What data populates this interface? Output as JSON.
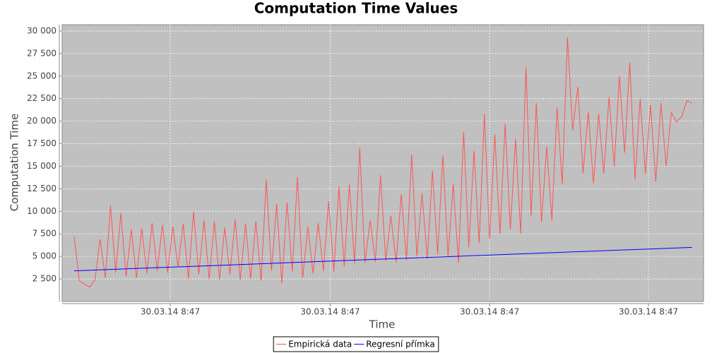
{
  "chart_data": {
    "type": "line",
    "title": "Computation Time Values",
    "x_label": "Time",
    "y_label": "Computation Time",
    "xlim": [
      -2.31,
      121.2
    ],
    "xticks": [
      {
        "value": 18.5,
        "label": "30.03.14 8:47"
      },
      {
        "value": 49.3,
        "label": "30.03.14 8:47"
      },
      {
        "value": 80.0,
        "label": "30.03.14 8:47"
      },
      {
        "value": 110.6,
        "label": "30.03.14 8:47"
      }
    ],
    "ylim": [
      0,
      30700
    ],
    "yticks": [
      {
        "value": 2500,
        "label": "2 500"
      },
      {
        "value": 5000,
        "label": "5 000"
      },
      {
        "value": 7500,
        "label": "7 500"
      },
      {
        "value": 10000,
        "label": "10 000"
      },
      {
        "value": 12500,
        "label": "12 500"
      },
      {
        "value": 15000,
        "label": "15 000"
      },
      {
        "value": 17500,
        "label": "17 500"
      },
      {
        "value": 20000,
        "label": "20 000"
      },
      {
        "value": 22500,
        "label": "22 500"
      },
      {
        "value": 25000,
        "label": "25 000"
      },
      {
        "value": 27500,
        "label": "27 500"
      },
      {
        "value": 30000,
        "label": "30 000"
      }
    ],
    "grid": true,
    "plot_background": "#c0c0c0",
    "legend_position": "bottom",
    "series": [
      {
        "name": "Empirická data",
        "color": "#ff5555",
        "x": [
          0,
          1,
          2,
          3,
          4,
          5,
          6,
          7,
          8,
          9,
          10,
          11,
          12,
          13,
          14,
          15,
          16,
          17,
          18,
          19,
          20,
          21,
          22,
          23,
          24,
          25,
          26,
          27,
          28,
          29,
          30,
          31,
          32,
          33,
          34,
          35,
          36,
          37,
          38,
          39,
          40,
          41,
          42,
          43,
          44,
          45,
          46,
          47,
          48,
          49,
          50,
          51,
          52,
          53,
          54,
          55,
          56,
          57,
          58,
          59,
          60,
          61,
          62,
          63,
          64,
          65,
          66,
          67,
          68,
          69,
          70,
          71,
          72,
          73,
          74,
          75,
          76,
          77,
          78,
          79,
          80,
          81,
          82,
          83,
          84,
          85,
          86,
          87,
          88,
          89,
          90,
          91,
          92,
          93,
          94,
          95,
          96,
          97,
          98,
          99,
          100,
          101,
          102,
          103,
          104,
          105,
          106,
          107,
          108,
          109,
          110,
          111,
          112,
          113,
          114,
          115,
          116,
          117,
          118,
          119
        ],
        "values": [
          7200,
          2300,
          1900,
          1600,
          2400,
          6900,
          2600,
          10600,
          3200,
          9800,
          2800,
          8000,
          2600,
          8100,
          3100,
          8700,
          3400,
          8500,
          3200,
          8300,
          3800,
          8600,
          2500,
          10000,
          3000,
          9000,
          2500,
          8900,
          2400,
          8200,
          3000,
          9100,
          2400,
          8600,
          2500,
          8900,
          2300,
          13500,
          3400,
          10800,
          2000,
          11000,
          3300,
          13800,
          2600,
          8300,
          3100,
          8700,
          3400,
          11100,
          3300,
          12700,
          3900,
          13000,
          4200,
          17000,
          4300,
          9000,
          4400,
          14000,
          4500,
          9500,
          4300,
          11900,
          4600,
          16300,
          5000,
          12000,
          4700,
          14500,
          5200,
          16200,
          5000,
          13000,
          4300,
          18800,
          6000,
          16700,
          6500,
          20800,
          7000,
          18500,
          7500,
          19700,
          8000,
          18000,
          7500,
          26000,
          9500,
          22000,
          8800,
          17200,
          9000,
          21500,
          13000,
          29300,
          19000,
          23800,
          14200,
          21000,
          13100,
          20800,
          14200,
          22700,
          15000,
          25000,
          16500,
          26500,
          13500,
          22500,
          14200,
          21800,
          13300,
          22000,
          15000,
          21000,
          19900,
          20500,
          22300,
          22000
        ]
      },
      {
        "name": "Regresní přímka",
        "color": "#0000ff",
        "x": [
          0,
          119
        ],
        "values": [
          3400,
          6000
        ]
      }
    ]
  }
}
